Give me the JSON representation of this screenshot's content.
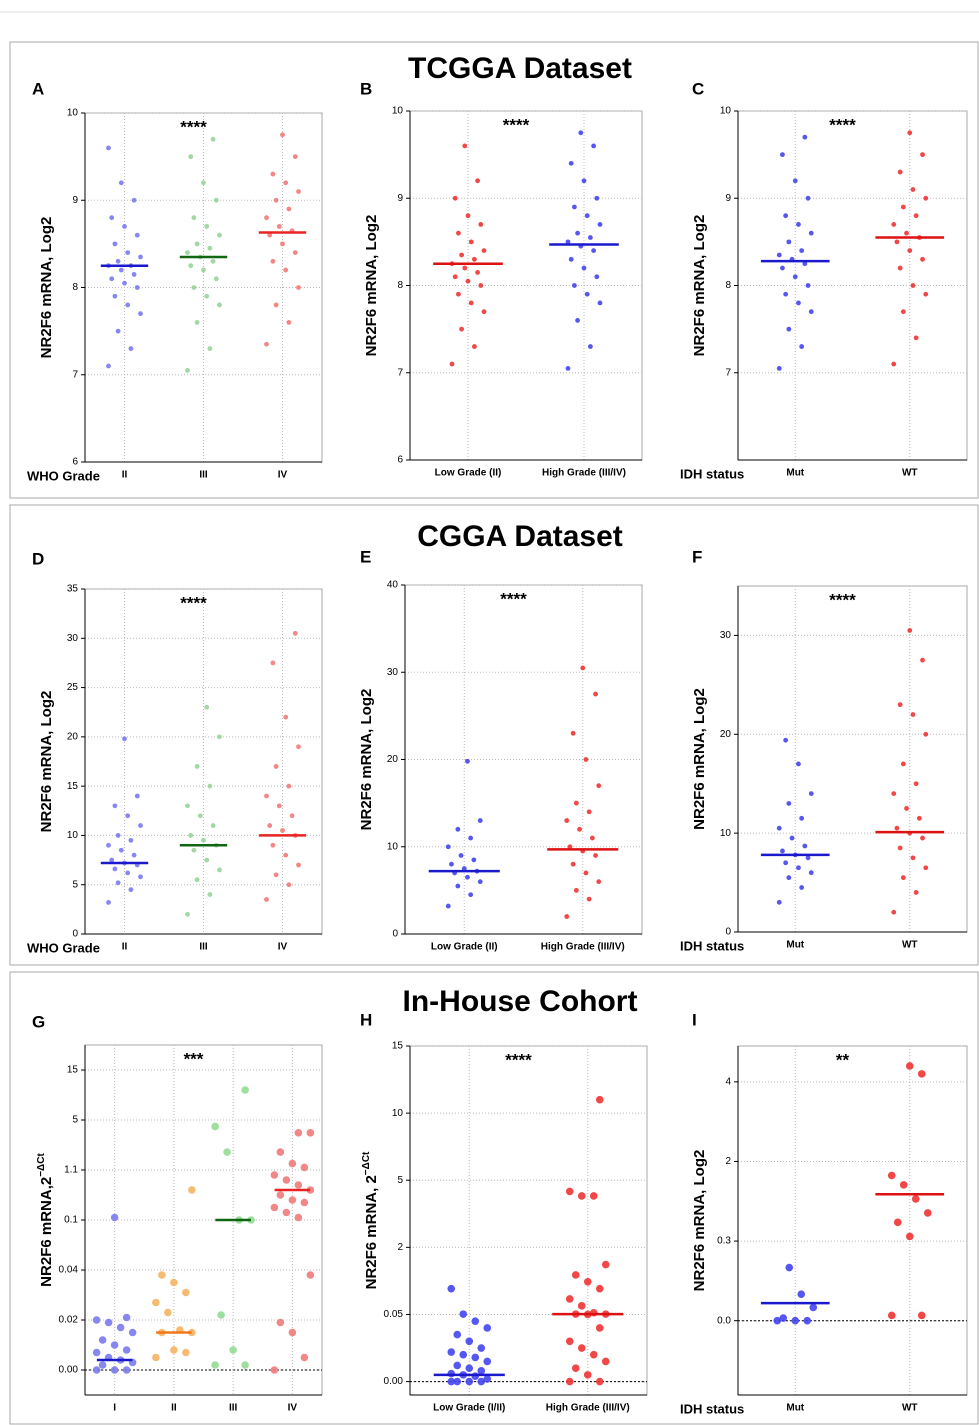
{
  "sections": [
    "TCGGA Dataset",
    "CGGA Dataset",
    "In-House Cohort"
  ],
  "chart_data": [
    {
      "type": "dotplot",
      "title": "A",
      "ylabel": "NR2F6 mRNA, Log2",
      "xlabel": "WHO Grade",
      "annotation": "****",
      "categories": [
        "II",
        "III",
        "IV"
      ],
      "ylim": [
        6,
        10
      ],
      "yticks": [
        6,
        7,
        8,
        9,
        10
      ],
      "grid": true,
      "groups": [
        {
          "color": "#7a7aee",
          "median_color": "#1a1acc",
          "median": 8.25,
          "values": [
            7.1,
            7.3,
            7.5,
            7.7,
            7.8,
            7.9,
            8.0,
            8.05,
            8.1,
            8.15,
            8.2,
            8.25,
            8.25,
            8.3,
            8.35,
            8.4,
            8.5,
            8.6,
            8.7,
            8.8,
            9.0,
            9.2,
            9.6
          ]
        },
        {
          "color": "#99d399",
          "median_color": "#116611",
          "median": 8.35,
          "values": [
            7.05,
            7.3,
            7.6,
            7.8,
            7.9,
            8.0,
            8.1,
            8.2,
            8.25,
            8.3,
            8.35,
            8.4,
            8.45,
            8.5,
            8.6,
            8.7,
            8.8,
            9.0,
            9.2,
            9.5,
            9.7
          ]
        },
        {
          "color": "#f07a7a",
          "median_color": "#e82222",
          "median": 8.63,
          "values": [
            7.35,
            7.6,
            7.8,
            8.0,
            8.2,
            8.3,
            8.4,
            8.5,
            8.6,
            8.65,
            8.7,
            8.8,
            8.9,
            9.0,
            9.1,
            9.2,
            9.3,
            9.5,
            9.75
          ]
        }
      ]
    },
    {
      "type": "dotplot",
      "title": "B",
      "ylabel": "NR2F6 mRNA, Log2",
      "annotation": "****",
      "categories": [
        "Low Grade (II)",
        "High Grade (III/IV)"
      ],
      "ylim": [
        6,
        10
      ],
      "yticks": [
        6,
        7,
        8,
        9,
        10
      ],
      "grid": true,
      "groups": [
        {
          "color": "#ee3333",
          "median_color": "#dd1111",
          "median": 8.25,
          "values": [
            7.1,
            7.3,
            7.5,
            7.7,
            7.8,
            7.9,
            8.0,
            8.05,
            8.1,
            8.15,
            8.2,
            8.25,
            8.3,
            8.35,
            8.4,
            8.5,
            8.6,
            8.7,
            8.8,
            9.0,
            9.2,
            9.6
          ]
        },
        {
          "color": "#4444ee",
          "median_color": "#1a1acc",
          "median": 8.47,
          "values": [
            7.05,
            7.3,
            7.6,
            7.8,
            7.9,
            8.0,
            8.1,
            8.2,
            8.3,
            8.4,
            8.45,
            8.5,
            8.55,
            8.6,
            8.7,
            8.8,
            8.9,
            9.0,
            9.2,
            9.4,
            9.6,
            9.75
          ]
        }
      ]
    },
    {
      "type": "dotplot",
      "title": "C",
      "ylabel": "NR2F6 mRNA, Log2",
      "xlabel": "IDH status",
      "annotation": "****",
      "categories": [
        "Mut",
        "WT"
      ],
      "ylim": [
        6,
        10
      ],
      "yticks": [
        7,
        8,
        9,
        10
      ],
      "grid": true,
      "groups": [
        {
          "color": "#4444ee",
          "median_color": "#1a1acc",
          "median": 8.28,
          "values": [
            7.05,
            7.3,
            7.5,
            7.7,
            7.8,
            7.9,
            8.0,
            8.1,
            8.2,
            8.25,
            8.3,
            8.35,
            8.4,
            8.5,
            8.6,
            8.7,
            8.8,
            9.0,
            9.2,
            9.5,
            9.7
          ]
        },
        {
          "color": "#ee3333",
          "median_color": "#dd1111",
          "median": 8.55,
          "values": [
            7.1,
            7.4,
            7.7,
            7.9,
            8.0,
            8.2,
            8.3,
            8.4,
            8.5,
            8.55,
            8.6,
            8.7,
            8.8,
            8.9,
            9.0,
            9.1,
            9.3,
            9.5,
            9.75
          ]
        }
      ]
    },
    {
      "type": "dotplot",
      "title": "D",
      "ylabel": "NR2F6 mRNA, Log2",
      "xlabel": "WHO Grade",
      "annotation": "****",
      "categories": [
        "II",
        "III",
        "IV"
      ],
      "ylim": [
        0,
        35
      ],
      "yticks": [
        0,
        5,
        10,
        15,
        20,
        25,
        30,
        35
      ],
      "grid": true,
      "groups": [
        {
          "color": "#7a7aee",
          "median_color": "#1a1acc",
          "median": 7.2,
          "values": [
            3.2,
            4.5,
            5.2,
            5.8,
            6.2,
            6.6,
            7.0,
            7.2,
            7.5,
            8,
            8.5,
            9,
            9.5,
            10,
            11,
            12,
            13,
            14,
            19.8
          ]
        },
        {
          "color": "#99d399",
          "median_color": "#116611",
          "median": 9.0,
          "values": [
            2,
            4,
            5.5,
            6.5,
            7.5,
            8.5,
            9,
            9.5,
            10,
            11,
            12,
            13,
            15,
            17,
            20,
            23
          ]
        },
        {
          "color": "#f07a7a",
          "median_color": "#e82222",
          "median": 10.0,
          "values": [
            3.5,
            5,
            6,
            7,
            8,
            9,
            10,
            10.5,
            11,
            12,
            13,
            14,
            15,
            17,
            19,
            22,
            27.5,
            30.5
          ]
        }
      ]
    },
    {
      "type": "dotplot",
      "title": "E",
      "ylabel": "NR2F6 mRNA, Log2",
      "annotation": "****",
      "categories": [
        "Low Grade (II)",
        "High Grade (III/IV)"
      ],
      "ylim": [
        0,
        40
      ],
      "yticks": [
        0,
        10,
        20,
        30,
        40
      ],
      "grid": true,
      "groups": [
        {
          "color": "#4444ee",
          "median_color": "#1a1acc",
          "median": 7.2,
          "values": [
            3.2,
            4.5,
            5.5,
            6,
            6.5,
            7,
            7.2,
            7.5,
            8,
            8.5,
            9,
            10,
            11,
            12,
            13,
            19.8
          ]
        },
        {
          "color": "#ee3333",
          "median_color": "#dd1111",
          "median": 9.7,
          "values": [
            2,
            4,
            5,
            6,
            7,
            8,
            9,
            9.5,
            10,
            11,
            12,
            13,
            14,
            15,
            17,
            20,
            23,
            27.5,
            30.5
          ]
        }
      ]
    },
    {
      "type": "dotplot",
      "title": "F",
      "ylabel": "NR2F6 mRNA, Log2",
      "xlabel": "IDH status",
      "annotation": "****",
      "categories": [
        "Mut",
        "WT"
      ],
      "ylim": [
        0,
        35
      ],
      "yticks": [
        0,
        10,
        20,
        30
      ],
      "grid": true,
      "groups": [
        {
          "color": "#4444ee",
          "median_color": "#1a1acc",
          "median": 7.8,
          "values": [
            3,
            4.5,
            5.5,
            6,
            6.5,
            7,
            7.5,
            7.8,
            8.2,
            8.7,
            9.5,
            10.5,
            11.5,
            13,
            14,
            17,
            19.4
          ]
        },
        {
          "color": "#ee3333",
          "median_color": "#dd1111",
          "median": 10.1,
          "values": [
            2,
            4,
            5.5,
            6.5,
            7.5,
            8.5,
            9.5,
            10,
            10.5,
            11.5,
            12.5,
            14,
            15,
            17,
            20,
            22,
            23,
            27.5,
            30.5
          ]
        }
      ]
    },
    {
      "type": "dotplot",
      "title": "G",
      "ylabel": "NR2F6 mRNA,2",
      "ylabel_sup": "−ΔCt",
      "annotation": "***",
      "categories": [
        "I",
        "II",
        "III",
        "IV"
      ],
      "scale": "broken",
      "ylim": [
        -0.01,
        20
      ],
      "yticks": [
        {
          "value": 0,
          "label": "0.00"
        },
        0.02,
        0.04,
        0.1,
        1.1,
        5,
        15
      ],
      "grid": true,
      "reference_line": 0,
      "groups": [
        {
          "color": "#7a7aee",
          "median_color": "#1a1acc",
          "median": 0.004,
          "values": [
            0,
            0,
            0,
            0.002,
            0.003,
            0.004,
            0.005,
            0.007,
            0.008,
            0.01,
            0.012,
            0.015,
            0.017,
            0.019,
            0.02,
            0.021,
            0.15
          ]
        },
        {
          "color": "#f5b464",
          "median_color": "#f07818",
          "median": 0.015,
          "values": [
            0.005,
            0.007,
            0.008,
            0.015,
            0.015,
            0.016,
            0.023,
            0.027,
            0.031,
            0.035,
            0.038,
            0.7
          ]
        },
        {
          "color": "#93dc93",
          "median_color": "#116611",
          "median": 0.1,
          "values": [
            0.002,
            0.002,
            0.008,
            0.022,
            0.1,
            0.1,
            2.5,
            4.5,
            11
          ]
        },
        {
          "color": "#f07a7a",
          "median_color": "#e82222",
          "median": 0.7,
          "values": [
            0,
            0.005,
            0.015,
            0.019,
            0.038,
            0.15,
            0.25,
            0.35,
            0.45,
            0.5,
            0.6,
            0.7,
            0.8,
            0.9,
            1.0,
            1.3,
            1.6,
            2.5,
            4,
            4
          ]
        }
      ]
    },
    {
      "type": "dotplot",
      "title": "H",
      "ylabel": "NR2F6 mRNA, 2",
      "ylabel_sup": "−ΔCt",
      "annotation": "****",
      "categories": [
        "Low Grade (I/II)",
        "High Grade (III/IV)"
      ],
      "scale": "broken",
      "ylim": [
        -0.01,
        15
      ],
      "yticks": [
        {
          "value": 0,
          "label": "0.00"
        },
        0.05,
        2,
        5,
        10,
        15
      ],
      "grid": true,
      "reference_line": 0,
      "groups": [
        {
          "color": "#4444ee",
          "median_color": "#1a1acc",
          "median": 0.005,
          "values": [
            0,
            0,
            0,
            0,
            0.002,
            0.004,
            0.005,
            0.006,
            0.008,
            0.01,
            0.012,
            0.015,
            0.018,
            0.02,
            0.022,
            0.025,
            0.03,
            0.035,
            0.04,
            0.045,
            0.06,
            0.8
          ]
        },
        {
          "color": "#ee3333",
          "median_color": "#dd1111",
          "median": 0.06,
          "values": [
            0,
            0,
            0.005,
            0.01,
            0.015,
            0.02,
            0.025,
            0.03,
            0.04,
            0.05,
            0.06,
            0.06,
            0.1,
            0.3,
            0.5,
            0.8,
            1.0,
            1.2,
            1.5,
            4.3,
            4.3,
            4.5,
            11
          ]
        }
      ]
    },
    {
      "type": "dotplot",
      "title": "I",
      "ylabel": "NR2F6 mRNA, Log2",
      "xlabel": "IDH status",
      "annotation": "**",
      "categories": [
        "Mut",
        "WT"
      ],
      "scale": "broken",
      "ylim": [
        -0.28,
        4.9
      ],
      "yticks": [
        {
          "value": 0,
          "label": "0.0"
        },
        0.3,
        2,
        4
      ],
      "grid": true,
      "reference_line": 0,
      "groups": [
        {
          "color": "#4444ee",
          "median_color": "#1a1acc",
          "median": 0.066,
          "values": [
            0,
            0,
            0,
            0.01,
            0.05,
            0.1,
            0.2
          ]
        },
        {
          "color": "#ee3333",
          "median_color": "#dd1111",
          "median": 1.3,
          "values": [
            0.02,
            0.02,
            0.4,
            0.7,
            0.9,
            1.2,
            1.5,
            1.7,
            4.2,
            4.4
          ]
        }
      ]
    }
  ]
}
